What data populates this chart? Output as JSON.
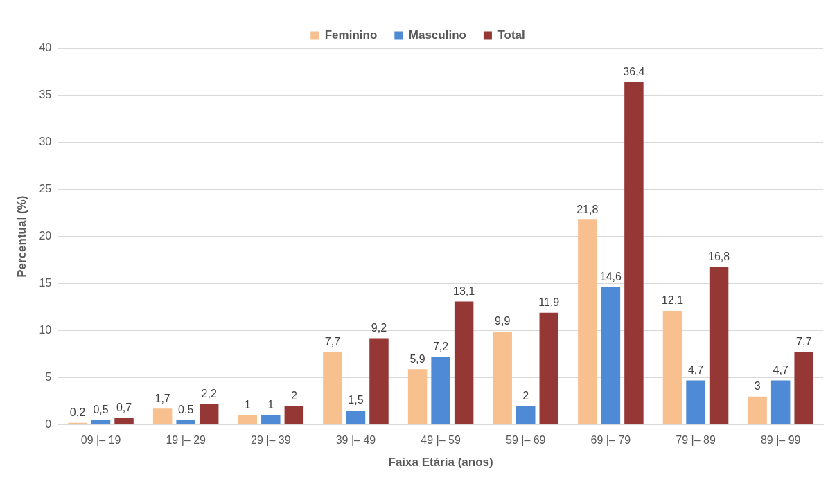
{
  "chart_data": {
    "type": "bar",
    "xlabel": "Faixa Etária (anos)",
    "ylabel": "Percentual (%)",
    "categories": [
      "09 |– 19",
      "19 |– 29",
      "29 |– 39",
      "39 |– 49",
      "49 |– 59",
      "59 |– 69",
      "69 |– 79",
      "79 |– 89",
      "89 |– 99"
    ],
    "series": [
      {
        "name": "Feminino",
        "color": "#f8c08f",
        "values": [
          0.2,
          1.7,
          1,
          7.7,
          5.9,
          9.9,
          21.8,
          12.1,
          3
        ],
        "value_labels": [
          "0,2",
          "1,7",
          "1",
          "7,7",
          "5,9",
          "9,9",
          "21,8",
          "12,1",
          "3"
        ]
      },
      {
        "name": "Masculino",
        "color": "#4f8ad6",
        "values": [
          0.5,
          0.5,
          1,
          1.5,
          7.2,
          2,
          14.6,
          4.7,
          4.7
        ],
        "value_labels": [
          "0,5",
          "0,5",
          "1",
          "1,5",
          "7,2",
          "2",
          "14,6",
          "4,7",
          "4,7"
        ]
      },
      {
        "name": "Total",
        "color": "#953735",
        "values": [
          0.7,
          2.2,
          2,
          9.2,
          13.1,
          11.9,
          36.4,
          16.8,
          7.7
        ],
        "value_labels": [
          "0,7",
          "2,2",
          "2",
          "9,2",
          "13,1",
          "11,9",
          "36,4",
          "16,8",
          "7,7"
        ]
      }
    ],
    "ylim": [
      0,
      40
    ],
    "yticks": [
      0,
      5,
      10,
      15,
      20,
      25,
      30,
      35,
      40
    ],
    "grid": "y",
    "legend": "top"
  }
}
